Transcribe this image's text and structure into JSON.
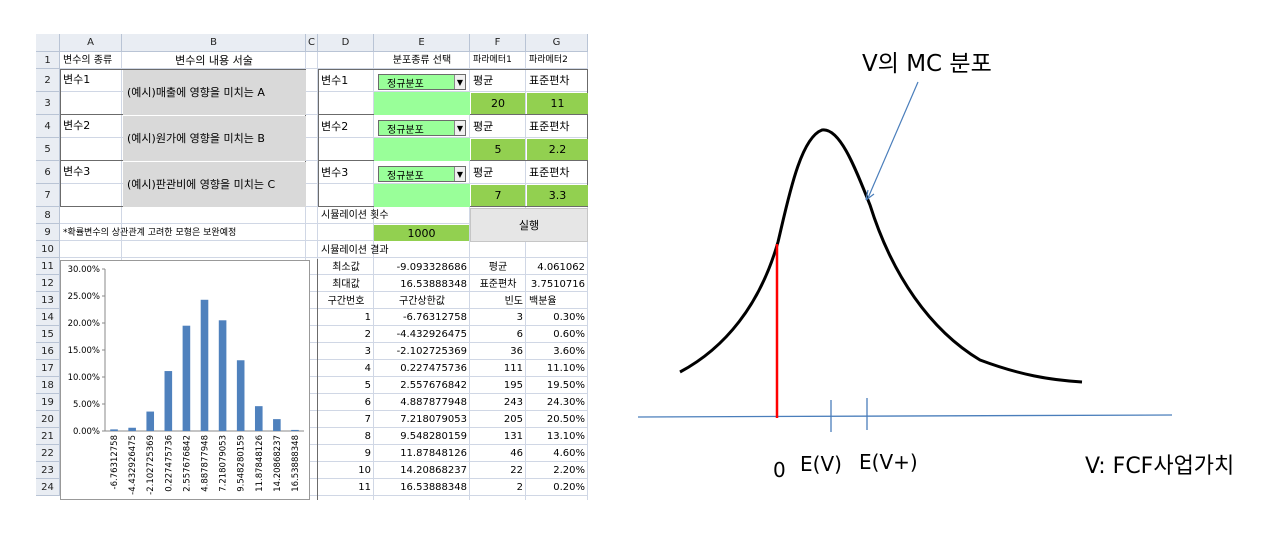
{
  "sheet": {
    "col_headers": [
      "A",
      "B",
      "C",
      "D",
      "E",
      "F",
      "G"
    ],
    "row_headers": [
      "1",
      "2",
      "3",
      "4",
      "5",
      "6",
      "7",
      "8",
      "9",
      "10",
      "11",
      "12",
      "13",
      "14",
      "15",
      "16",
      "17",
      "18",
      "19",
      "20",
      "21",
      "22",
      "23",
      "24"
    ],
    "header_row": {
      "a1": "변수의 종류",
      "b1": "변수의 내용 서술",
      "e1": "분포종류 선택",
      "f1": "파라메터1",
      "g1": "파라메터2"
    },
    "variables": [
      {
        "name": "변수1",
        "desc": "(예시)매출에 영향을 미치는 A",
        "d_label": "변수1",
        "dist": "정규분포",
        "p1_label": "평균",
        "p2_label": "표준편차",
        "p1": "20",
        "p2": "11"
      },
      {
        "name": "변수2",
        "desc": "(예시)원가에 영향을 미치는 B",
        "d_label": "변수2",
        "dist": "정규분포",
        "p1_label": "평균",
        "p2_label": "표준편차",
        "p1": "5",
        "p2": "2.2"
      },
      {
        "name": "변수3",
        "desc": "(예시)판관비에 영향을 미치는 C",
        "d_label": "변수3",
        "dist": "정규분포",
        "p1_label": "평균",
        "p2_label": "표준편차",
        "p1": "7",
        "p2": "3.3"
      }
    ],
    "sim_count_label": "시뮬레이션 횟수",
    "sim_count": "1000",
    "run_button": "실행",
    "note": "*확률변수의 상관관계 고려한 모형은 보완예정",
    "result_label": "시뮬레이션 결과",
    "stats": {
      "min_label": "최소값",
      "min": "-9.093328686",
      "max_label": "최대값",
      "max": "16.53888348",
      "mean_label": "평균",
      "mean": "4.061062",
      "sd_label": "표준편차",
      "sd": "3.7510716"
    },
    "table_headers": [
      "구간번호",
      "구간상한값",
      "빈도",
      "백분율"
    ],
    "table_rows": [
      [
        "1",
        "-6.76312758",
        "3",
        "0.30%"
      ],
      [
        "2",
        "-4.432926475",
        "6",
        "0.60%"
      ],
      [
        "3",
        "-2.102725369",
        "36",
        "3.60%"
      ],
      [
        "4",
        "0.227475736",
        "111",
        "11.10%"
      ],
      [
        "5",
        "2.557676842",
        "195",
        "19.50%"
      ],
      [
        "6",
        "4.887877948",
        "243",
        "24.30%"
      ],
      [
        "7",
        "7.218079053",
        "205",
        "20.50%"
      ],
      [
        "8",
        "9.548280159",
        "131",
        "13.10%"
      ],
      [
        "9",
        "11.87848126",
        "46",
        "4.60%"
      ],
      [
        "10",
        "14.20868237",
        "22",
        "2.20%"
      ],
      [
        "11",
        "16.53888348",
        "2",
        "0.20%"
      ]
    ]
  },
  "chart_data": {
    "type": "bar",
    "categories": [
      "-6.76312758",
      "-4.432926475",
      "-2.102725369",
      "0.227475736",
      "2.557676842",
      "4.887877948",
      "7.218079053",
      "9.548280159",
      "11.87848126",
      "14.20868237",
      "16.53888348"
    ],
    "values": [
      0.3,
      0.6,
      3.6,
      11.1,
      19.5,
      24.3,
      20.5,
      13.1,
      4.6,
      2.2,
      0.2
    ],
    "y_tick_labels": [
      "30.00%",
      "25.00%",
      "20.00%",
      "15.00%",
      "10.00%",
      "5.00%",
      "0.00%"
    ],
    "ylim": [
      0,
      30
    ],
    "color": "#4f81bd",
    "title": "",
    "xlabel": "",
    "ylabel": ""
  },
  "diagram": {
    "title": "V의 MC 분포",
    "zero": "0",
    "ev": "E(V)",
    "evplus": "E(V+)",
    "axis_label": "V: FCF사업가치",
    "curve_color": "#000000",
    "axis_color": "#4a7ebb",
    "marker_color": "#ff0000"
  }
}
